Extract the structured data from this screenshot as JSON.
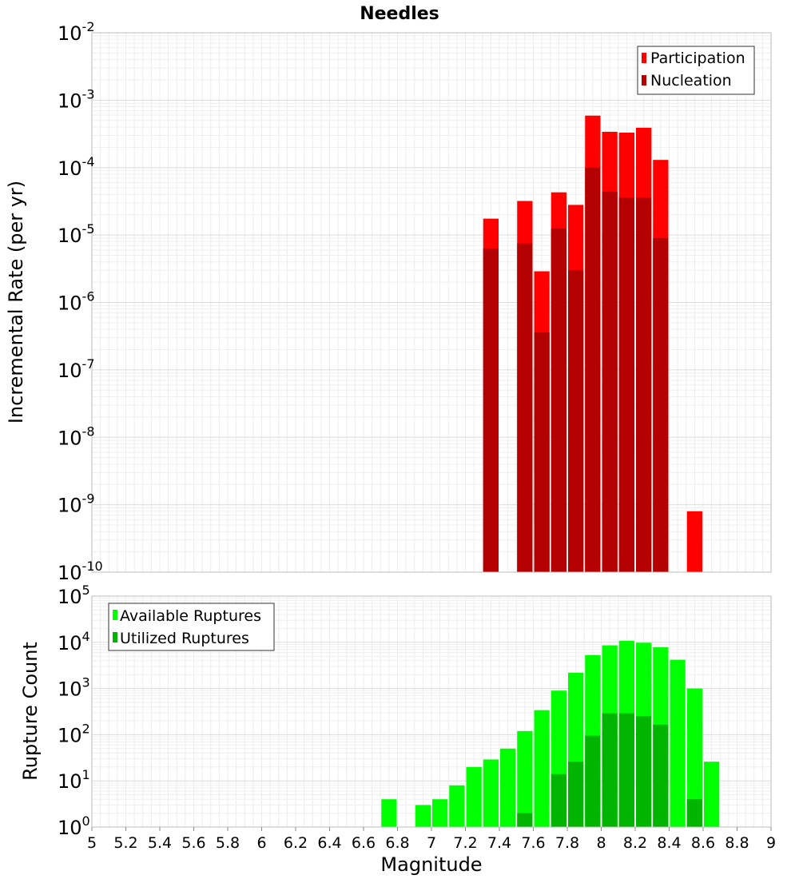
{
  "chart_data": [
    {
      "type": "bar",
      "title": "Needles",
      "ylabel": "Incremental Rate (per yr)",
      "xlabel": "",
      "yscale": "log",
      "ylim_exp": [
        -10,
        -2
      ],
      "xlim": [
        5,
        9
      ],
      "bin_width": 0.1,
      "grid": true,
      "legend_position": "top-right",
      "overlay": true,
      "series": [
        {
          "name": "Participation",
          "color": "#ff0000",
          "x": [
            7.35,
            7.55,
            7.65,
            7.75,
            7.85,
            7.95,
            8.05,
            8.15,
            8.25,
            8.35,
            8.55
          ],
          "values": [
            1.75e-05,
            3.2e-05,
            2.9e-06,
            4.3e-05,
            2.8e-05,
            0.00059,
            0.00034,
            0.00033,
            0.00039,
            0.00013,
            8e-10
          ]
        },
        {
          "name": "Nucleation",
          "color": "#b40000",
          "x": [
            7.35,
            7.55,
            7.65,
            7.75,
            7.85,
            7.95,
            8.05,
            8.15,
            8.25,
            8.35
          ],
          "values": [
            6.3e-06,
            7.5e-06,
            3.6e-07,
            1.25e-05,
            3e-06,
            0.0001,
            4.4e-05,
            3.6e-05,
            3.6e-05,
            9e-06
          ]
        }
      ]
    },
    {
      "type": "bar",
      "title": "",
      "ylabel": "Rupture Count",
      "xlabel": "Magnitude",
      "yscale": "log",
      "ylim_exp": [
        0,
        5
      ],
      "xlim": [
        5,
        9
      ],
      "xticks": [
        "5",
        "5.2",
        "5.4",
        "5.6",
        "5.8",
        "6",
        "6.2",
        "6.4",
        "6.6",
        "6.8",
        "7",
        "7.2",
        "7.4",
        "7.6",
        "7.8",
        "8",
        "8.2",
        "8.4",
        "8.6",
        "8.8",
        "9"
      ],
      "bin_width": 0.1,
      "grid": true,
      "legend_position": "top-left",
      "overlay": true,
      "series": [
        {
          "name": "Available Ruptures",
          "color": "#00ff00",
          "x": [
            6.75,
            6.95,
            7.05,
            7.15,
            7.25,
            7.35,
            7.45,
            7.55,
            7.65,
            7.75,
            7.85,
            7.95,
            8.05,
            8.15,
            8.25,
            8.35,
            8.45,
            8.55,
            8.65
          ],
          "values": [
            4,
            3,
            4,
            8,
            20,
            29,
            50,
            120,
            340,
            900,
            2200,
            5300,
            8600,
            10800,
            9800,
            7800,
            4200,
            1000,
            26
          ]
        },
        {
          "name": "Utilized Ruptures",
          "color": "#00b400",
          "x": [
            7.35,
            7.55,
            7.65,
            7.75,
            7.85,
            7.95,
            8.05,
            8.15,
            8.25,
            8.35,
            8.55
          ],
          "values": [
            1,
            2,
            1,
            14,
            26,
            95,
            290,
            290,
            250,
            165,
            4
          ]
        }
      ]
    }
  ]
}
